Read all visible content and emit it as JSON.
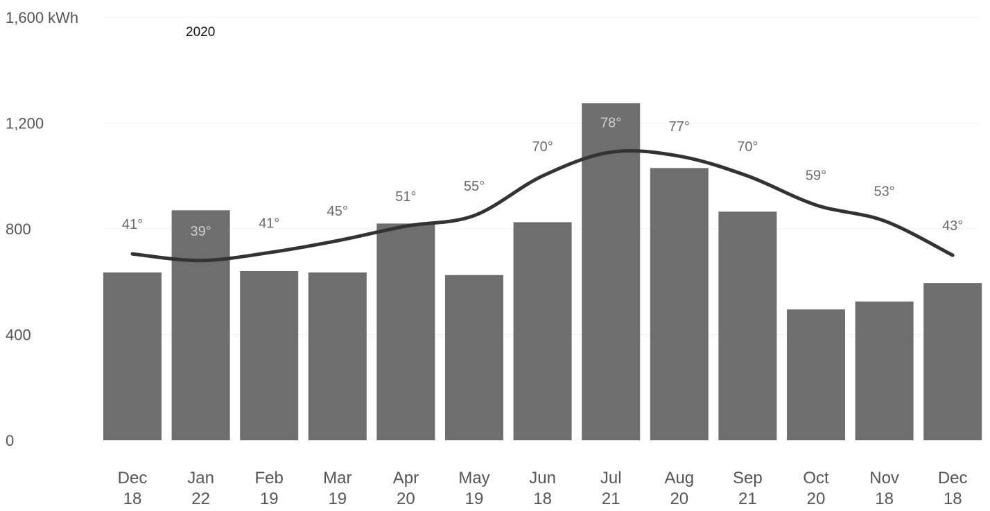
{
  "chart_data": {
    "type": "bar",
    "title": "2020",
    "y_unit": "kWh",
    "ylim": [
      0,
      1600
    ],
    "yticks": [
      "1,600 kWh",
      "1,200",
      "800",
      "400",
      "0"
    ],
    "ytick_values": [
      1600,
      1200,
      800,
      400,
      0
    ],
    "grid": true,
    "categories": [
      {
        "month": "Dec",
        "day": "18"
      },
      {
        "month": "Jan",
        "day": "22"
      },
      {
        "month": "Feb",
        "day": "19"
      },
      {
        "month": "Mar",
        "day": "19"
      },
      {
        "month": "Apr",
        "day": "20"
      },
      {
        "month": "May",
        "day": "19"
      },
      {
        "month": "Jun",
        "day": "18"
      },
      {
        "month": "Jul",
        "day": "21"
      },
      {
        "month": "Aug",
        "day": "20"
      },
      {
        "month": "Sep",
        "day": "21"
      },
      {
        "month": "Oct",
        "day": "20"
      },
      {
        "month": "Nov",
        "day": "18"
      },
      {
        "month": "Dec",
        "day": "18"
      }
    ],
    "series": [
      {
        "kind": "bar",
        "values": [
          635,
          870,
          640,
          635,
          820,
          625,
          825,
          1275,
          1030,
          865,
          495,
          525,
          595
        ]
      },
      {
        "kind": "line",
        "temperatures": [
          41,
          39,
          41,
          45,
          51,
          55,
          70,
          78,
          77,
          70,
          59,
          53,
          43
        ],
        "temperature_labels": [
          "41°",
          "39°",
          "41°",
          "45°",
          "51°",
          "55°",
          "70°",
          "78°",
          "77°",
          "70°",
          "59°",
          "53°",
          "43°"
        ],
        "curve_values": [
          705,
          680,
          710,
          755,
          810,
          850,
          1000,
          1090,
          1075,
          1000,
          890,
          830,
          700
        ]
      }
    ],
    "colors": {
      "bar": "#6e6e6e",
      "line": "#333333",
      "text": "#555555"
    }
  }
}
